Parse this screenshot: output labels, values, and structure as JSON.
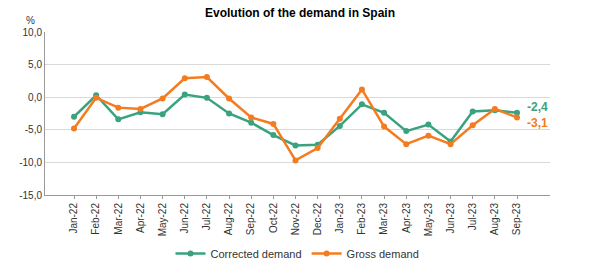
{
  "chart_data": {
    "type": "line",
    "title": "Evolution of the demand in Spain",
    "y_label": "%",
    "categories": [
      "Jan-22",
      "Feb-22",
      "Mar-22",
      "Apr-22",
      "May-22",
      "Jun-22",
      "Jul-22",
      "Aug-22",
      "Sep-22",
      "Oct-22",
      "Nov-22",
      "Dec-22",
      "Jan-23",
      "Feb-23",
      "Mar-23",
      "Apr-23",
      "May-23",
      "Jun-23",
      "Jul-23",
      "Aug-23",
      "Sep-23"
    ],
    "series": [
      {
        "name": "Corrected demand",
        "color": "#3aa27f",
        "marker": "circle",
        "values": [
          -3.0,
          0.3,
          -3.4,
          -2.3,
          -2.6,
          0.4,
          -0.1,
          -2.5,
          -3.9,
          -5.8,
          -7.4,
          -7.3,
          -4.4,
          -1.1,
          -2.4,
          -5.2,
          -4.2,
          -6.8,
          -2.2,
          -2.0,
          -2.4
        ],
        "value_labels": [
          null,
          null,
          null,
          null,
          null,
          null,
          null,
          null,
          null,
          null,
          null,
          null,
          null,
          null,
          null,
          null,
          null,
          null,
          null,
          null,
          "-2,4"
        ]
      },
      {
        "name": "Gross demand",
        "color": "#f47c20",
        "marker": "circle",
        "values": [
          -4.8,
          -0.1,
          -1.6,
          -1.8,
          -0.2,
          2.9,
          3.1,
          -0.2,
          -3.1,
          -4.1,
          -9.7,
          -7.8,
          -3.3,
          1.2,
          -4.5,
          -7.2,
          -5.9,
          -7.2,
          -4.3,
          -1.8,
          -3.1
        ],
        "value_labels": [
          null,
          null,
          null,
          null,
          null,
          null,
          null,
          null,
          null,
          null,
          null,
          null,
          null,
          null,
          null,
          null,
          null,
          null,
          null,
          null,
          "-3,1"
        ]
      }
    ],
    "ylim": [
      -15,
      10
    ],
    "yticks": [
      {
        "value": -15,
        "label": "-15,0"
      },
      {
        "value": -10,
        "label": "-10,0"
      },
      {
        "value": -5,
        "label": "-5,0"
      },
      {
        "value": 0,
        "label": "0,0"
      },
      {
        "value": 5,
        "label": "5,0"
      },
      {
        "value": 10,
        "label": "10,0"
      }
    ],
    "grid": true,
    "legend": "bottom"
  }
}
